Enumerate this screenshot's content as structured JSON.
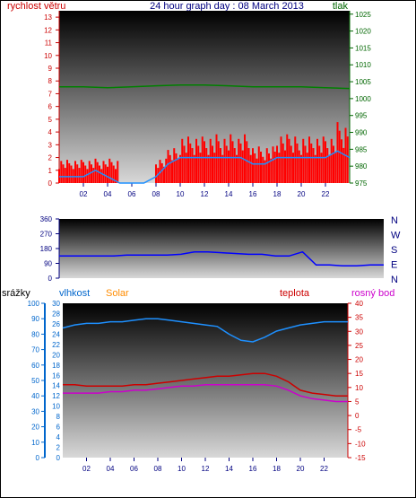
{
  "header": {
    "title": "24 hour graph day : 08 March 2013",
    "left_label": "rychlost větru",
    "right_label": "tlak"
  },
  "colors": {
    "wind": "#ff0000",
    "gust": "#1e90ff",
    "pressure": "#008000",
    "direction": "#0000ff",
    "rain": "#0066cc",
    "humidity": "#1e90ff",
    "solar": "#ff8c00",
    "temperature": "#cc0000",
    "dewpoint": "#cc00cc",
    "left_axis": "#cc0000",
    "right_axis": "#006600",
    "dir_axis": "#000080"
  },
  "chart_data": [
    {
      "type": "line",
      "name": "wind-pressure",
      "yticks": [
        "13",
        "12",
        "11",
        "10",
        "9",
        "8",
        "7",
        "6",
        "5",
        "4",
        "3",
        "2",
        "1",
        "0"
      ],
      "y2ticks": [
        "1025",
        "1020",
        "1015",
        "1010",
        "1005",
        "1000",
        "995",
        "990",
        "985",
        "980",
        "975"
      ],
      "xticks": [
        "02",
        "04",
        "06",
        "08",
        "10",
        "12",
        "14",
        "16",
        "18",
        "20",
        "22"
      ],
      "ylim": [
        0,
        13.5
      ],
      "y2lim": [
        975,
        1026
      ],
      "xlim": [
        0,
        24
      ],
      "series": [
        {
          "key": "wind_max",
          "x": [
            0,
            1,
            2,
            3,
            4,
            5,
            6,
            7,
            8,
            9,
            10,
            11,
            12,
            13,
            14,
            15,
            16,
            17,
            18,
            19,
            20,
            21,
            22,
            23,
            24
          ],
          "values": [
            2,
            2,
            2,
            2,
            2,
            0,
            0,
            0,
            2,
            3,
            4,
            4,
            4,
            4,
            4,
            4,
            3,
            3,
            4,
            4,
            4,
            4,
            4,
            5,
            4
          ]
        },
        {
          "key": "wind_avg",
          "x": [
            0,
            1,
            2,
            3,
            4,
            5,
            6,
            7,
            8,
            9,
            10,
            11,
            12,
            13,
            14,
            15,
            16,
            17,
            18,
            19,
            20,
            21,
            22,
            23,
            24
          ],
          "values": [
            0.5,
            0.5,
            0.5,
            1,
            0.5,
            0,
            0,
            0,
            0.5,
            1.5,
            2,
            2,
            2,
            2,
            2,
            2,
            1.5,
            1.5,
            2,
            2,
            2,
            2,
            2,
            2.5,
            2
          ]
        },
        {
          "key": "pressure",
          "x": [
            0,
            2,
            4,
            6,
            8,
            10,
            12,
            14,
            16,
            18,
            20,
            22,
            24
          ],
          "values": [
            1003.5,
            1003.5,
            1003.2,
            1003.5,
            1003.8,
            1004,
            1004,
            1003.8,
            1003.5,
            1003.5,
            1003.5,
            1003.2,
            1003
          ]
        }
      ]
    },
    {
      "type": "line",
      "name": "wind-direction",
      "yticks": [
        "360",
        "270",
        "180",
        "90",
        "0"
      ],
      "dir_labels": [
        "N",
        "W",
        "S",
        "E",
        "N"
      ],
      "ylim": [
        0,
        360
      ],
      "xlim": [
        0,
        24
      ],
      "series": [
        {
          "key": "direction",
          "x": [
            0,
            1,
            2,
            3,
            4,
            5,
            6,
            7,
            8,
            9,
            10,
            11,
            12,
            13,
            14,
            15,
            16,
            17,
            18,
            19,
            20,
            21,
            22,
            23,
            24
          ],
          "values": [
            135,
            135,
            135,
            135,
            135,
            140,
            140,
            140,
            140,
            145,
            160,
            160,
            155,
            150,
            145,
            145,
            135,
            135,
            160,
            80,
            80,
            75,
            75,
            80,
            80
          ]
        }
      ]
    },
    {
      "type": "line",
      "name": "humidity-temperature",
      "labels": {
        "rain": "srážky",
        "humidity": "vlhkost",
        "solar": "Solar",
        "temperature": "teplota",
        "dewpoint": "rosný bod"
      },
      "yticks_rain": [
        "100",
        "90",
        "80",
        "70",
        "60",
        "50",
        "40",
        "30",
        "20",
        "10",
        "0"
      ],
      "yticks_hum": [
        "30",
        "28",
        "26",
        "24",
        "22",
        "20",
        "18",
        "16",
        "14",
        "12",
        "10",
        "8",
        "6",
        "4",
        "2",
        "0"
      ],
      "yticks_temp": [
        "40",
        "35",
        "30",
        "25",
        "20",
        "15",
        "10",
        "5",
        "0",
        "-5",
        "-10",
        "-15"
      ],
      "xticks": [
        "02",
        "04",
        "06",
        "08",
        "10",
        "12",
        "14",
        "16",
        "18",
        "20",
        "22"
      ],
      "xlim": [
        0,
        24
      ],
      "series": [
        {
          "key": "humidity_hi",
          "x": [
            0,
            1,
            2,
            3,
            4,
            5,
            6,
            7,
            8,
            9,
            10,
            11,
            12,
            13,
            14,
            15,
            16,
            17,
            18,
            19,
            20,
            21,
            22,
            23,
            24
          ],
          "values": [
            84,
            86,
            87,
            87,
            88,
            88,
            89,
            90,
            90,
            89,
            88,
            87,
            86,
            85,
            80,
            76,
            75,
            78,
            82,
            84,
            86,
            87,
            88,
            88,
            88
          ]
        },
        {
          "key": "temperature",
          "x": [
            0,
            1,
            2,
            3,
            4,
            5,
            6,
            7,
            8,
            9,
            10,
            11,
            12,
            13,
            14,
            15,
            16,
            17,
            18,
            19,
            20,
            21,
            22,
            23,
            24
          ],
          "values": [
            11,
            11,
            10.5,
            10.5,
            10.5,
            10.5,
            11,
            11,
            11.5,
            12,
            12.5,
            13,
            13.5,
            14,
            14,
            14.5,
            15,
            15,
            14,
            12,
            9,
            8,
            7.5,
            7,
            7
          ]
        },
        {
          "key": "dewpoint",
          "x": [
            0,
            1,
            2,
            3,
            4,
            5,
            6,
            7,
            8,
            9,
            10,
            11,
            12,
            13,
            14,
            15,
            16,
            17,
            18,
            19,
            20,
            21,
            22,
            23,
            24
          ],
          "values": [
            8,
            8,
            8,
            8,
            8.5,
            8.5,
            9,
            9,
            9.5,
            10,
            10.5,
            10.5,
            11,
            11,
            11,
            11,
            11,
            11,
            10.5,
            9,
            7,
            6,
            5.5,
            5,
            5
          ]
        }
      ]
    }
  ]
}
